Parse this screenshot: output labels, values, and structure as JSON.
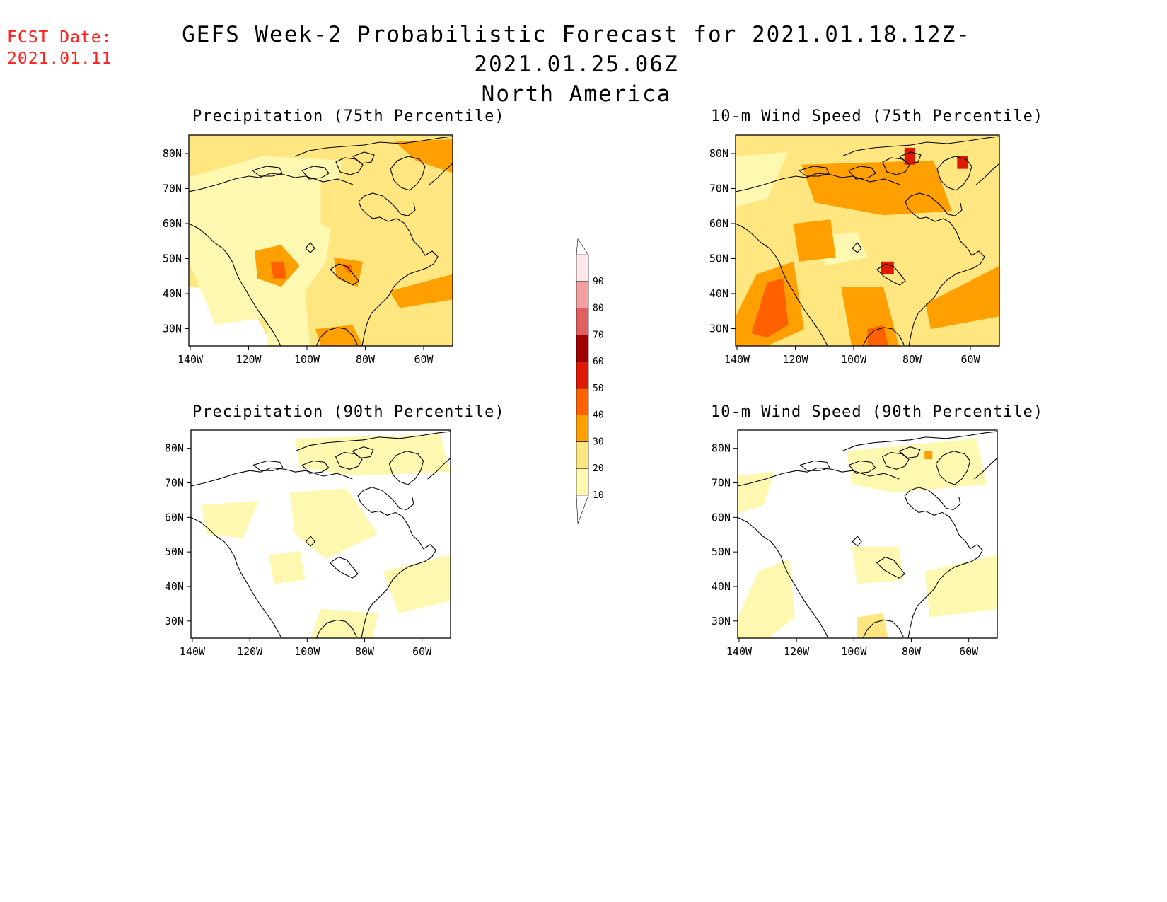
{
  "fcst": {
    "line1": "FCST Date:",
    "line2": "2021.01.11"
  },
  "title": {
    "line1": "GEFS Week-2 Probabilistic Forecast for 2021.01.18.12Z-2021.01.25.06Z",
    "line2": "North America"
  },
  "colors": {
    "fcst_text": "#ff2020",
    "coast": "#000000"
  },
  "lat_ticks": [
    "80N",
    "70N",
    "60N",
    "50N",
    "40N",
    "30N"
  ],
  "lon_ticks": [
    "140W",
    "120W",
    "100W",
    "80W",
    "60W"
  ],
  "panels": [
    {
      "id": "precip75",
      "title": "Precipitation (75th Percentile)"
    },
    {
      "id": "wind75",
      "title": "10-m Wind Speed (75th Percentile)"
    },
    {
      "id": "precip90",
      "title": "Precipitation (90th Percentile)"
    },
    {
      "id": "wind90",
      "title": "10-m Wind Speed (90th Percentile)"
    }
  ],
  "colorbar": {
    "labels": [
      "10",
      "20",
      "30",
      "40",
      "50",
      "60",
      "70",
      "80",
      "90"
    ],
    "colors": [
      "#fff8b0",
      "#ffe680",
      "#ffa000",
      "#ff6000",
      "#e01800",
      "#a00000",
      "#e06060",
      "#f4a0a0",
      "#ffe8ea"
    ]
  }
}
